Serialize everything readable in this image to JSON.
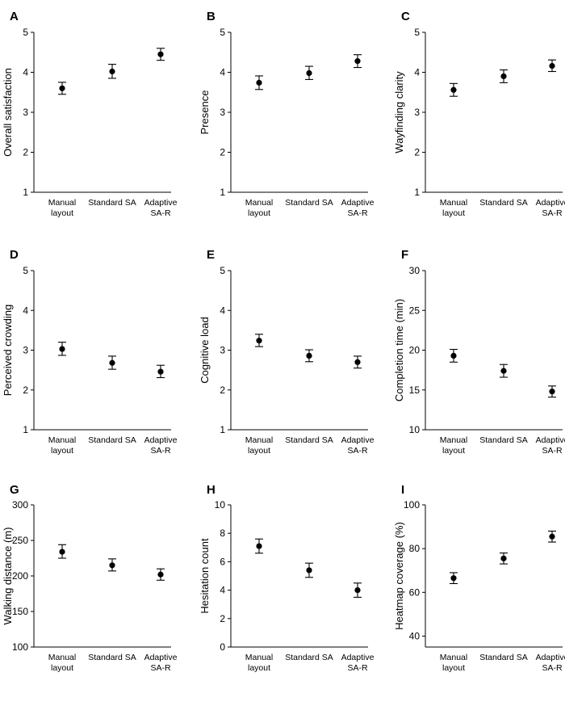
{
  "chart_data": [
    {
      "type": "scatter",
      "panel": "A",
      "ylabel": "Overall satisfaction",
      "ylim": [
        1,
        5
      ],
      "yticks": [
        1,
        2,
        3,
        4,
        5
      ],
      "categories": [
        "Manual layout",
        "Standard SA",
        "Adaptive SA-R"
      ],
      "category_lines": [
        [
          "Manual",
          "layout"
        ],
        [
          "Standard SA"
        ],
        [
          "Adaptive",
          "SA-R"
        ]
      ],
      "values": [
        3.6,
        4.02,
        4.45
      ],
      "err_low": [
        3.45,
        3.85,
        4.3
      ],
      "err_high": [
        3.75,
        4.2,
        4.6
      ]
    },
    {
      "type": "scatter",
      "panel": "B",
      "ylabel": "Presence",
      "ylim": [
        1,
        5
      ],
      "yticks": [
        1,
        2,
        3,
        4,
        5
      ],
      "categories": [
        "Manual layout",
        "Standard SA",
        "Adaptive SA-R"
      ],
      "category_lines": [
        [
          "Manual",
          "layout"
        ],
        [
          "Standard SA"
        ],
        [
          "Adaptive",
          "SA-R"
        ]
      ],
      "values": [
        3.74,
        3.98,
        4.28
      ],
      "err_low": [
        3.57,
        3.82,
        4.12
      ],
      "err_high": [
        3.91,
        4.15,
        4.44
      ]
    },
    {
      "type": "scatter",
      "panel": "C",
      "ylabel": "Wayfinding clarity",
      "ylim": [
        1,
        5
      ],
      "yticks": [
        1,
        2,
        3,
        4,
        5
      ],
      "categories": [
        "Manual layout",
        "Standard SA",
        "Adaptive SA-R"
      ],
      "category_lines": [
        [
          "Manual",
          "layout"
        ],
        [
          "Standard SA"
        ],
        [
          "Adaptive",
          "SA-R"
        ]
      ],
      "values": [
        3.56,
        3.9,
        4.16
      ],
      "err_low": [
        3.4,
        3.74,
        4.02
      ],
      "err_high": [
        3.72,
        4.06,
        4.31
      ]
    },
    {
      "type": "scatter",
      "panel": "D",
      "ylabel": "Perceived crowding",
      "ylim": [
        1,
        5
      ],
      "yticks": [
        1,
        2,
        3,
        4,
        5
      ],
      "categories": [
        "Manual layout",
        "Standard SA",
        "Adaptive SA-R"
      ],
      "category_lines": [
        [
          "Manual",
          "layout"
        ],
        [
          "Standard SA"
        ],
        [
          "Adaptive",
          "SA-R"
        ]
      ],
      "values": [
        3.03,
        2.68,
        2.46
      ],
      "err_low": [
        2.87,
        2.52,
        2.31
      ],
      "err_high": [
        3.2,
        2.85,
        2.62
      ]
    },
    {
      "type": "scatter",
      "panel": "E",
      "ylabel": "Cognitive load",
      "ylim": [
        1,
        5
      ],
      "yticks": [
        1,
        2,
        3,
        4,
        5
      ],
      "categories": [
        "Manual layout",
        "Standard SA",
        "Adaptive SA-R"
      ],
      "category_lines": [
        [
          "Manual",
          "layout"
        ],
        [
          "Standard SA"
        ],
        [
          "Adaptive",
          "SA-R"
        ]
      ],
      "values": [
        3.24,
        2.86,
        2.7
      ],
      "err_low": [
        3.09,
        2.71,
        2.55
      ],
      "err_high": [
        3.4,
        3.01,
        2.85
      ]
    },
    {
      "type": "scatter",
      "panel": "F",
      "ylabel": "Completion time (min)",
      "ylim": [
        10,
        30
      ],
      "yticks": [
        10,
        15,
        20,
        25,
        30
      ],
      "categories": [
        "Manual layout",
        "Standard SA",
        "Adaptive SA-R"
      ],
      "category_lines": [
        [
          "Manual",
          "layout"
        ],
        [
          "Standard SA"
        ],
        [
          "Adaptive",
          "SA-R"
        ]
      ],
      "values": [
        19.3,
        17.4,
        14.8
      ],
      "err_low": [
        18.5,
        16.6,
        14.1
      ],
      "err_high": [
        20.1,
        18.2,
        15.5
      ]
    },
    {
      "type": "scatter",
      "panel": "G",
      "ylabel": "Walking distance (m)",
      "ylim": [
        100,
        300
      ],
      "yticks": [
        100,
        150,
        200,
        250,
        300
      ],
      "categories": [
        "Manual layout",
        "Standard SA",
        "Adaptive SA-R"
      ],
      "category_lines": [
        [
          "Manual",
          "layout"
        ],
        [
          "Standard SA"
        ],
        [
          "Adaptive",
          "SA-R"
        ]
      ],
      "values": [
        234,
        215,
        202
      ],
      "err_low": [
        225,
        207,
        194
      ],
      "err_high": [
        244,
        224,
        210
      ]
    },
    {
      "type": "scatter",
      "panel": "H",
      "ylabel": "Hesitation count",
      "ylim": [
        0,
        10
      ],
      "yticks": [
        0,
        2,
        4,
        6,
        8,
        10
      ],
      "categories": [
        "Manual layout",
        "Standard SA",
        "Adaptive SA-R"
      ],
      "category_lines": [
        [
          "Manual",
          "layout"
        ],
        [
          "Standard SA"
        ],
        [
          "Adaptive",
          "SA-R"
        ]
      ],
      "values": [
        7.1,
        5.4,
        4.0
      ],
      "err_low": [
        6.6,
        4.9,
        3.5
      ],
      "err_high": [
        7.6,
        5.9,
        4.5
      ]
    },
    {
      "type": "scatter",
      "panel": "I",
      "ylabel": "Heatmap coverage (%)",
      "ylim": [
        35,
        100
      ],
      "yticks": [
        40,
        60,
        80,
        100
      ],
      "categories": [
        "Manual layout",
        "Standard SA",
        "Adaptive SA-R"
      ],
      "category_lines": [
        [
          "Manual",
          "layout"
        ],
        [
          "Standard SA"
        ],
        [
          "Adaptive",
          "SA-R"
        ]
      ],
      "values": [
        66.5,
        75.5,
        85.5
      ],
      "err_low": [
        64,
        73,
        83
      ],
      "err_high": [
        69,
        78,
        88
      ]
    }
  ]
}
